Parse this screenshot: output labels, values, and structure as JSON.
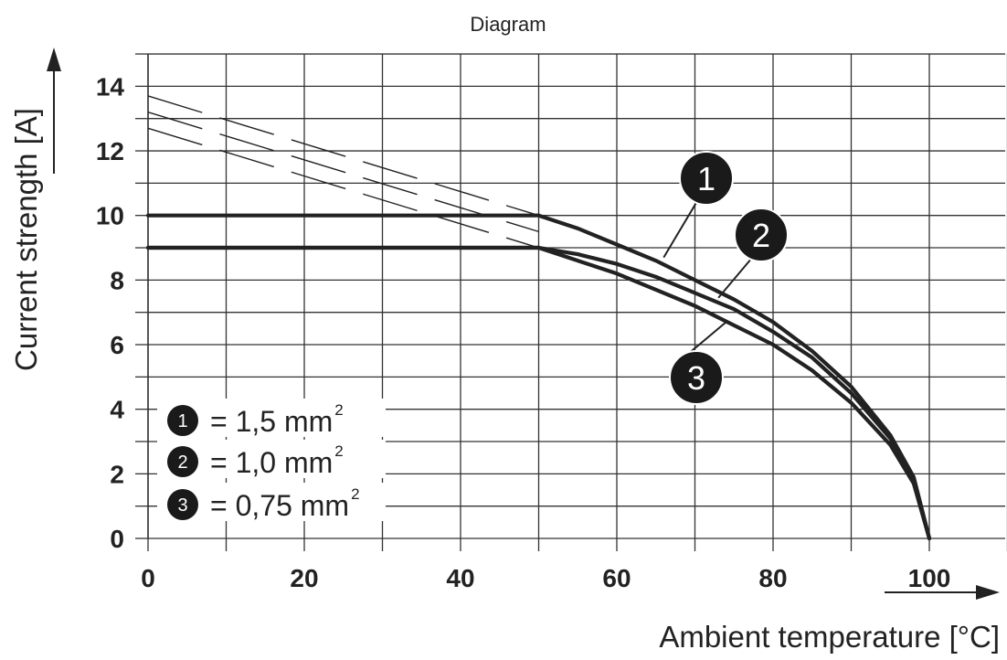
{
  "chart_data": {
    "type": "line",
    "title": "Diagram",
    "xlabel": "Ambient temperature [°C]",
    "ylabel": "Current strength [A]",
    "xlim": [
      0,
      110
    ],
    "ylim": [
      0,
      15
    ],
    "x_ticks": [
      0,
      20,
      40,
      60,
      80,
      100
    ],
    "y_ticks": [
      0,
      2,
      4,
      6,
      8,
      10,
      12,
      14
    ],
    "grid": true,
    "legend_position": "bottom-left",
    "series": [
      {
        "name": "1,5 mm²",
        "id": "1",
        "label_unit": "1,5 mm",
        "sup": "2",
        "x": [
          0,
          50,
          55,
          60,
          65,
          70,
          75,
          80,
          85,
          90,
          95,
          98,
          100
        ],
        "y": [
          10,
          10,
          9.6,
          9.1,
          8.6,
          8.0,
          7.4,
          6.7,
          5.8,
          4.7,
          3.2,
          1.9,
          0
        ]
      },
      {
        "name": "1,0 mm²",
        "id": "2",
        "label_unit": "1,0 mm",
        "sup": "2",
        "x": [
          0,
          50,
          55,
          60,
          65,
          70,
          75,
          80,
          85,
          90,
          95,
          98,
          100
        ],
        "y": [
          9,
          9,
          8.8,
          8.5,
          8.1,
          7.6,
          7.1,
          6.4,
          5.6,
          4.5,
          3.1,
          1.8,
          0
        ]
      },
      {
        "name": "0,75 mm²",
        "id": "3",
        "label_unit": "0,75 mm",
        "sup": "2",
        "x": [
          0,
          50,
          55,
          60,
          65,
          70,
          75,
          80,
          85,
          90,
          95,
          98,
          100
        ],
        "y": [
          9,
          9,
          8.6,
          8.2,
          7.7,
          7.2,
          6.6,
          6.0,
          5.2,
          4.2,
          2.9,
          1.7,
          0
        ]
      }
    ],
    "dashed_extensions": [
      {
        "x": [
          0,
          50
        ],
        "y": [
          13.7,
          10.0
        ]
      },
      {
        "x": [
          0,
          50
        ],
        "y": [
          13.2,
          9.5
        ]
      },
      {
        "x": [
          0,
          50
        ],
        "y": [
          12.7,
          9.0
        ]
      }
    ],
    "legend_separator": "=",
    "colors": {
      "line": "#222222",
      "grid": "#333333",
      "badge": "#1a1a1a",
      "badge_text": "#ffffff"
    }
  }
}
